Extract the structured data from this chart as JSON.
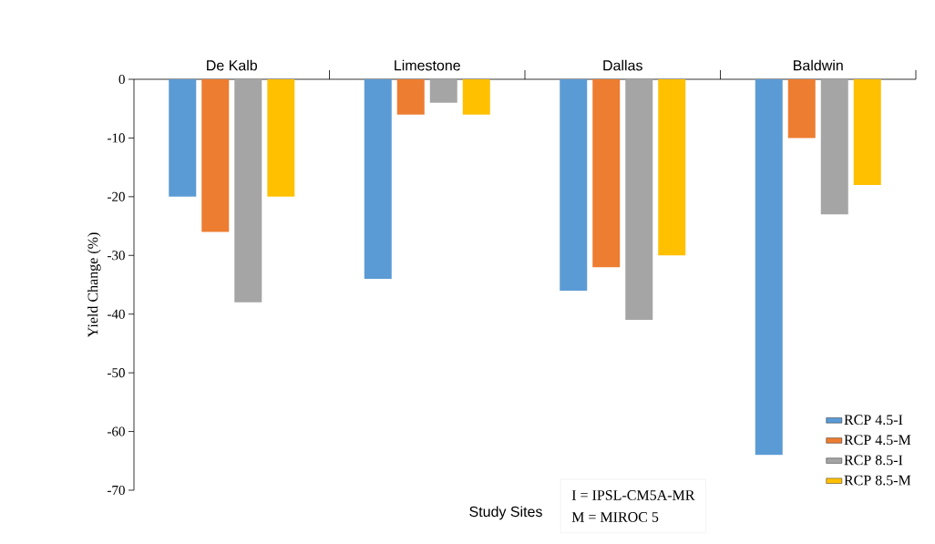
{
  "chart_data": {
    "type": "bar",
    "xlabel": "Study Sites",
    "ylabel": "Yield Change (%)",
    "categories": [
      "De Kalb",
      "Limestone",
      "Dallas",
      "Baldwin"
    ],
    "series": [
      {
        "name": "RCP 4.5-I",
        "color": "#5b9bd5",
        "values": [
          -20,
          -34,
          -36,
          -64
        ]
      },
      {
        "name": "RCP 4.5-M",
        "color": "#ed7d31",
        "values": [
          -26,
          -6,
          -32,
          -10
        ]
      },
      {
        "name": "RCP 8.5-I",
        "color": "#a5a5a5",
        "values": [
          -38,
          -4,
          -41,
          -23
        ]
      },
      {
        "name": "RCP 8.5-M",
        "color": "#ffc000",
        "values": [
          -20,
          -6,
          -30,
          -18
        ]
      }
    ],
    "ylim": [
      -70,
      0
    ],
    "yticks": [
      0,
      -10,
      -20,
      -30,
      -40,
      -50,
      -60,
      -70
    ],
    "legend": "bottom right",
    "grid": false,
    "annotations": [
      "I = IPSL-CM5A-MR",
      "M = MIROC 5"
    ]
  }
}
